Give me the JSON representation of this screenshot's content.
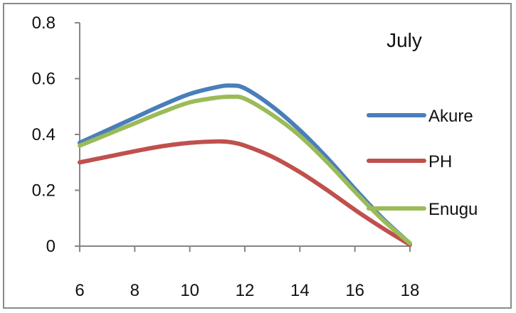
{
  "chart_data": {
    "type": "line",
    "title": "July",
    "xlabel": "",
    "ylabel": "",
    "xlim": [
      6,
      18
    ],
    "ylim": [
      0,
      0.8
    ],
    "x_ticks": [
      "6",
      "8",
      "10",
      "12",
      "14",
      "16",
      "18"
    ],
    "y_ticks": [
      "0",
      "0.2",
      "0.4",
      "0.6",
      "0.8"
    ],
    "grid": false,
    "legend_position": "right",
    "series": [
      {
        "name": "Akure",
        "color": "#4a7ebb",
        "x": [
          6,
          7,
          8,
          9,
          10,
          11,
          11.5,
          12,
          13,
          14,
          15,
          16,
          17,
          18
        ],
        "y": [
          0.37,
          0.415,
          0.46,
          0.505,
          0.545,
          0.57,
          0.575,
          0.565,
          0.5,
          0.415,
          0.315,
          0.205,
          0.1,
          0.01
        ]
      },
      {
        "name": "PH",
        "color": "#c0504d",
        "x": [
          6,
          7,
          8,
          9,
          10,
          11,
          11.5,
          12,
          13,
          14,
          15,
          16,
          17,
          18
        ],
        "y": [
          0.3,
          0.32,
          0.34,
          0.358,
          0.37,
          0.375,
          0.372,
          0.36,
          0.32,
          0.265,
          0.2,
          0.13,
          0.065,
          0.005
        ]
      },
      {
        "name": "Enugu",
        "color": "#9bbb59",
        "x": [
          6,
          7,
          8,
          9,
          10,
          11,
          11.5,
          12,
          13,
          14,
          15,
          16,
          17,
          18
        ],
        "y": [
          0.36,
          0.4,
          0.44,
          0.48,
          0.515,
          0.532,
          0.535,
          0.528,
          0.47,
          0.395,
          0.3,
          0.195,
          0.095,
          0.01
        ]
      }
    ]
  }
}
